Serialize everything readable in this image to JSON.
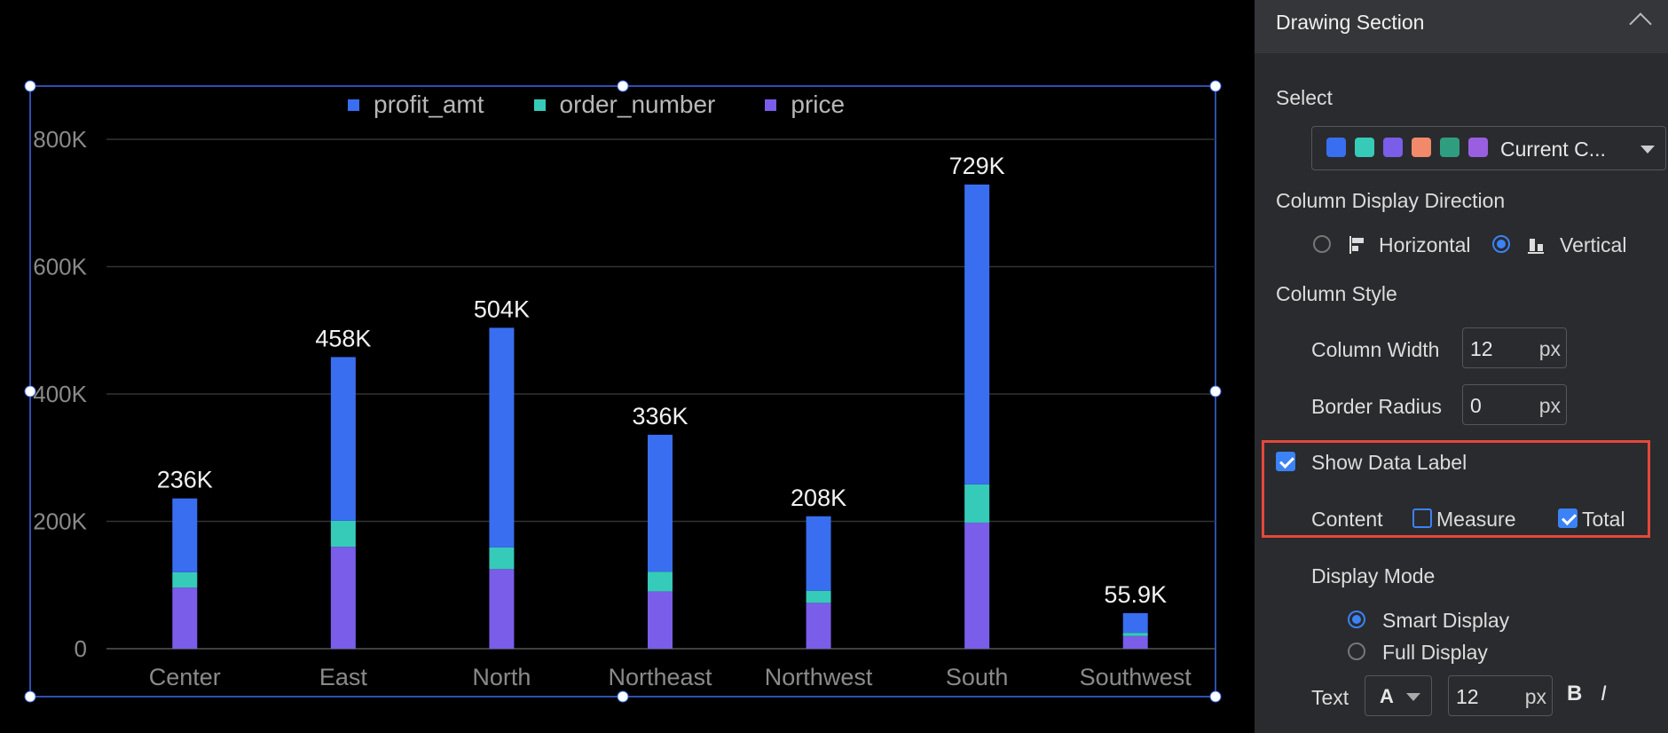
{
  "chart_data": {
    "type": "bar",
    "stacked": true,
    "categories": [
      "Center",
      "East",
      "North",
      "Northeast",
      "Northwest",
      "South",
      "Southwest"
    ],
    "series": [
      {
        "name": "profit_amt",
        "color": "#3a6ef0",
        "values": [
          116000,
          257000,
          345000,
          215000,
          117000,
          471000,
          31000
        ]
      },
      {
        "name": "order_number",
        "color": "#36cbb8",
        "values": [
          24000,
          41000,
          34000,
          31000,
          19000,
          60000,
          5000
        ]
      },
      {
        "name": "price",
        "color": "#7a5de8",
        "values": [
          96000,
          160000,
          125000,
          90000,
          72000,
          198000,
          19900
        ]
      }
    ],
    "totals_labels": [
      "236K",
      "458K",
      "504K",
      "336K",
      "208K",
      "729K",
      "55.9K"
    ],
    "y_ticks": [
      "0",
      "200K",
      "400K",
      "600K",
      "800K"
    ],
    "ylim": [
      0,
      800000
    ],
    "grid": true,
    "legend_position": "top-center"
  },
  "panel": {
    "title": "Drawing Section",
    "select_label": "Select",
    "palette": {
      "value": "Current C...",
      "swatches": [
        "#3a6ef0",
        "#36cbb8",
        "#7a5de8",
        "#f2896b",
        "#2f9e80",
        "#9a5fe0"
      ]
    },
    "direction_label": "Column Display Direction",
    "direction_options": {
      "horizontal": "Horizontal",
      "vertical": "Vertical",
      "selected": "vertical"
    },
    "column_style_label": "Column Style",
    "column_width": {
      "label": "Column Width",
      "value": "12",
      "unit": "px"
    },
    "border_radius": {
      "label": "Border Radius",
      "value": "0",
      "unit": "px"
    },
    "show_data_label": {
      "label": "Show Data Label",
      "checked": true
    },
    "content": {
      "label": "Content",
      "measure": "Measure",
      "measure_checked": false,
      "total": "Total",
      "total_checked": true
    },
    "display_mode": {
      "label": "Display Mode",
      "smart": "Smart Display",
      "full": "Full Display",
      "selected": "smart"
    },
    "text": {
      "label": "Text",
      "font_glyph": "A",
      "size": "12",
      "unit": "px",
      "bold": "B",
      "italic": "I"
    }
  }
}
